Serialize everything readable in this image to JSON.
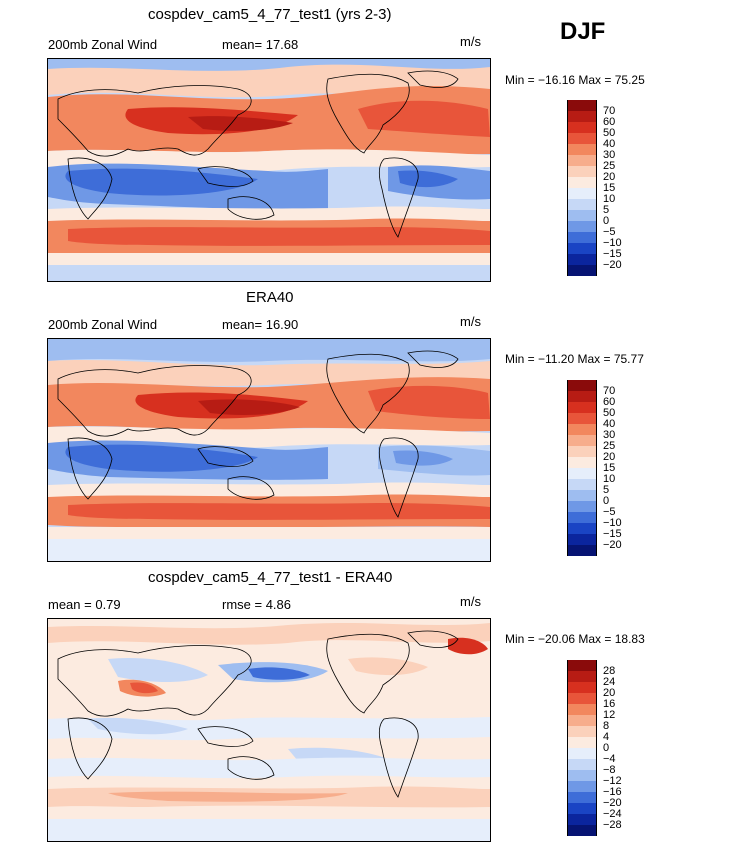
{
  "season": "DJF",
  "panels": [
    {
      "title": "cospdev_cam5_4_77_test1 (yrs 2-3)",
      "left_label": "200mb Zonal Wind",
      "mid_label": "mean=  17.68",
      "units": "m/s",
      "minmax": "Min = −16.16 Max =  75.25",
      "levels": [
        "70",
        "60",
        "50",
        "40",
        "30",
        "25",
        "20",
        "15",
        "10",
        "5",
        "0",
        "−5",
        "−10",
        "−15",
        "−20"
      ],
      "colors": [
        "#8a0b0b",
        "#b71c14",
        "#d7301f",
        "#e8553a",
        "#f2875e",
        "#f7ad8c",
        "#fbd1bb",
        "#fcebe0",
        "#e6eefb",
        "#c6d8f6",
        "#9ebdf0",
        "#6f98e6",
        "#3e6dd8",
        "#1a44c4",
        "#0b259e",
        "#061473"
      ]
    },
    {
      "title": "ERA40",
      "left_label": "200mb Zonal Wind",
      "mid_label": "mean=  16.90",
      "units": "m/s",
      "minmax": "Min = −11.20 Max =  75.77",
      "levels": [
        "70",
        "60",
        "50",
        "40",
        "30",
        "25",
        "20",
        "15",
        "10",
        "5",
        "0",
        "−5",
        "−10",
        "−15",
        "−20"
      ],
      "colors": [
        "#8a0b0b",
        "#b71c14",
        "#d7301f",
        "#e8553a",
        "#f2875e",
        "#f7ad8c",
        "#fbd1bb",
        "#fcebe0",
        "#e6eefb",
        "#c6d8f6",
        "#9ebdf0",
        "#6f98e6",
        "#3e6dd8",
        "#1a44c4",
        "#0b259e",
        "#061473"
      ]
    },
    {
      "title": "cospdev_cam5_4_77_test1 - ERA40",
      "left_label": "mean =   0.79",
      "mid_label": "rmse =   4.86",
      "units": "m/s",
      "minmax": "Min = −20.06 Max =  18.83",
      "levels": [
        "28",
        "24",
        "20",
        "16",
        "12",
        "8",
        "4",
        "0",
        "−4",
        "−8",
        "−12",
        "−16",
        "−20",
        "−24",
        "−28"
      ],
      "colors": [
        "#8a0b0b",
        "#b71c14",
        "#d7301f",
        "#e8553a",
        "#f2875e",
        "#f7ad8c",
        "#fbd1bb",
        "#fcebe0",
        "#e6eefb",
        "#c6d8f6",
        "#9ebdf0",
        "#6f98e6",
        "#3e6dd8",
        "#1a44c4",
        "#0b259e",
        "#061473"
      ]
    }
  ]
}
